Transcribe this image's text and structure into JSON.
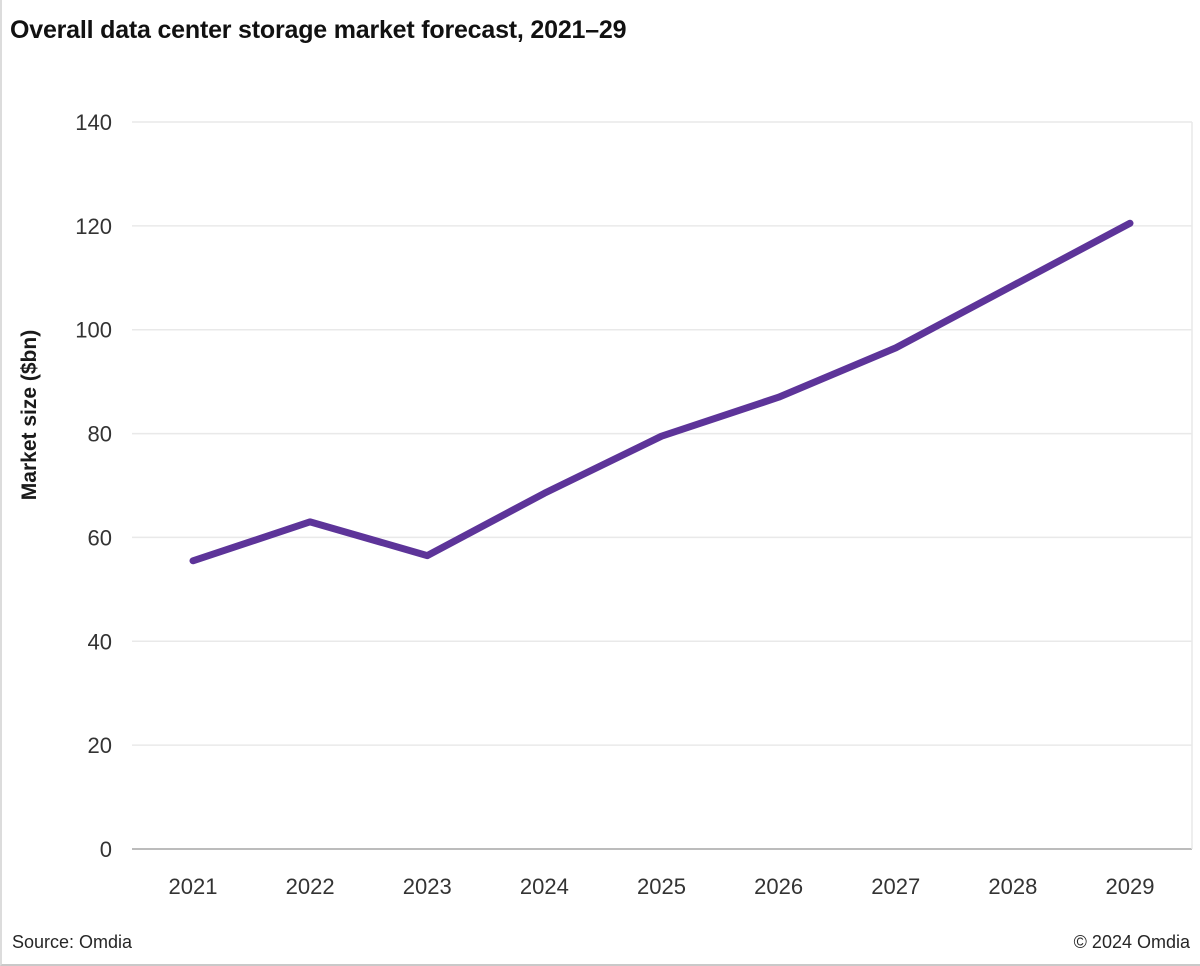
{
  "title": "Overall data center storage market forecast, 2021–29",
  "footer": {
    "source": "Source: Omdia",
    "copyright": "© 2024 Omdia"
  },
  "chart_data": {
    "type": "line",
    "categories": [
      "2021",
      "2022",
      "2023",
      "2024",
      "2025",
      "2026",
      "2027",
      "2028",
      "2029"
    ],
    "values": [
      55.5,
      63,
      56.5,
      68.5,
      79.5,
      87,
      96.5,
      108.5,
      120.5
    ],
    "series": [
      {
        "name": "Overall data center storage market",
        "values": [
          55.5,
          63,
          56.5,
          68.5,
          79.5,
          87,
          96.5,
          108.5,
          120.5
        ]
      }
    ],
    "title": "Overall data center storage market forecast, 2021–29",
    "xlabel": "",
    "ylabel": "Market size ($bn)",
    "ylim": [
      0,
      140
    ],
    "ytick_step": 20,
    "yticks": [
      0,
      20,
      40,
      60,
      80,
      100,
      120,
      140
    ],
    "grid": true,
    "legend": false,
    "line_color": "#5d3499",
    "axis_line_color": "#a6a6a6",
    "grid_color": "#e9e9e9",
    "tick_label_color": "#333333"
  }
}
